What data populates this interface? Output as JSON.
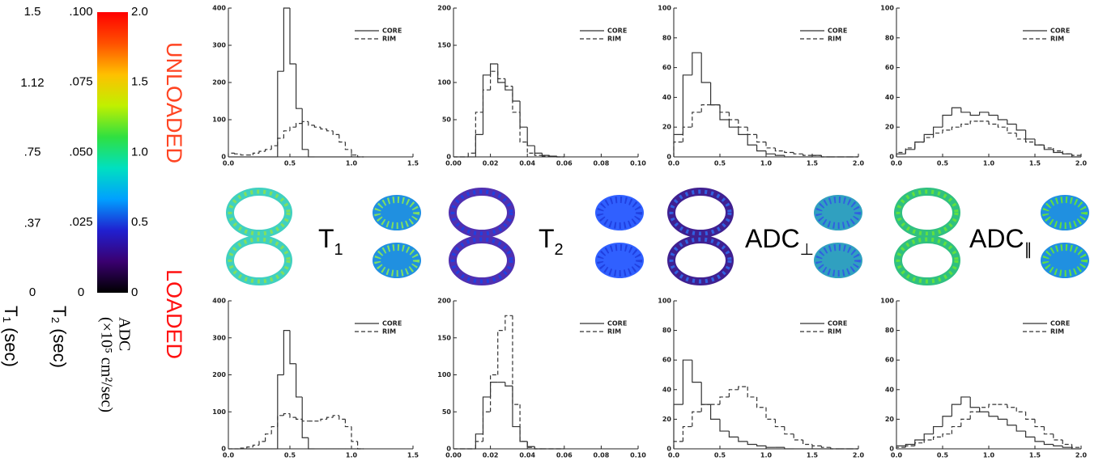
{
  "figure": {
    "unloaded": "UNLOADED",
    "loaded": "LOADED",
    "unloaded_color": "#ff4422",
    "loaded_color": "#ff1010",
    "map_labels": [
      {
        "base": "T",
        "sub": "1"
      },
      {
        "base": "T",
        "sub": "2"
      },
      {
        "base": "ADC",
        "sub": "⊥"
      },
      {
        "base": "ADC",
        "sub": "∥"
      }
    ],
    "colorbar": {
      "colors": [
        "#000000",
        "#3a0070",
        "#2020d0",
        "#00a0ff",
        "#00e0c0",
        "#30e040",
        "#c0f000",
        "#ffc000",
        "#ff5000",
        "#ff0000"
      ],
      "scales": [
        {
          "lim": [
            0,
            1.5
          ],
          "ticks": [
            1.5,
            1.12,
            {
              "value": 0.75,
              "label": ".75"
            },
            {
              "value": 0.37,
              "label": ".37"
            },
            0
          ],
          "label": [
            "T₁ (sec)"
          ]
        },
        {
          "lim": [
            0,
            0.1
          ],
          "ticks": [
            {
              "value": 0.1,
              "label": ".100"
            },
            {
              "value": 0.075,
              "label": ".075"
            },
            {
              "value": 0.05,
              "label": ".050"
            },
            {
              "value": 0.025,
              "label": ".025"
            },
            0
          ],
          "label": [
            "T₂ (sec)"
          ]
        },
        {
          "lim": [
            0,
            2
          ],
          "ticks": [
            {
              "value": 2,
              "label": "2.0"
            },
            1.5,
            {
              "value": 1,
              "label": "1.0"
            },
            0.5,
            0
          ],
          "label": [
            "ADC",
            "(×10⁵ cm²/sec)"
          ]
        }
      ]
    }
  },
  "chart_data": [
    {
      "type": "histogram",
      "bins": [
        0,
        0.05,
        0.1,
        0.15,
        0.2,
        0.25,
        0.3,
        0.35,
        0.4,
        0.45,
        0.5,
        0.55,
        0.6,
        0.65,
        0.7,
        0.75,
        0.8,
        0.85,
        0.9,
        0.95,
        1.0,
        1.05,
        1.1
      ],
      "series": [
        {
          "name": "CORE",
          "color": "#333333",
          "dash": "solid",
          "values": [
            0,
            0,
            0,
            0,
            0,
            0,
            0,
            0,
            230,
            400,
            250,
            130,
            20,
            0,
            0,
            0,
            0,
            0,
            0,
            0,
            0,
            0
          ]
        },
        {
          "name": "RIM",
          "color": "#333333",
          "dash": "dashed",
          "values": [
            10,
            8,
            5,
            5,
            10,
            15,
            20,
            30,
            50,
            70,
            80,
            90,
            95,
            85,
            80,
            75,
            70,
            60,
            40,
            20,
            5,
            0
          ]
        }
      ],
      "xlim": [
        0,
        1.5
      ],
      "xticks": [
        {
          "value": 0,
          "label": "0.0"
        },
        0.5,
        {
          "value": 1,
          "label": "1.0"
        },
        1.5
      ],
      "ylim": [
        0,
        400
      ],
      "yticks": [
        0,
        100,
        200,
        300,
        400
      ]
    },
    {
      "type": "histogram",
      "bins": [
        0,
        0.004,
        0.008,
        0.012,
        0.016,
        0.02,
        0.024,
        0.028,
        0.032,
        0.036,
        0.04,
        0.044,
        0.048,
        0.052,
        0.056,
        0.06
      ],
      "series": [
        {
          "name": "CORE",
          "color": "#333333",
          "dash": "solid",
          "values": [
            0,
            0,
            0,
            30,
            110,
            125,
            100,
            90,
            75,
            40,
            15,
            5,
            2,
            1,
            0
          ]
        },
        {
          "name": "RIM",
          "color": "#333333",
          "dash": "dashed",
          "values": [
            0,
            0,
            5,
            60,
            90,
            115,
            105,
            95,
            60,
            20,
            5,
            2,
            1,
            1,
            0
          ]
        }
      ],
      "xlim": [
        0,
        0.1
      ],
      "xticks": [
        {
          "value": 0,
          "label": "0.00"
        },
        0.02,
        0.04,
        0.06,
        0.08,
        {
          "value": 0.1,
          "label": "0.10"
        }
      ],
      "ylim": [
        0,
        200
      ],
      "yticks": [
        0,
        50,
        100,
        150,
        200
      ]
    },
    {
      "type": "histogram",
      "bins": [
        0,
        0.1,
        0.2,
        0.3,
        0.4,
        0.5,
        0.6,
        0.7,
        0.8,
        0.9,
        1.0,
        1.1,
        1.2,
        1.3,
        1.4,
        1.5,
        1.6,
        1.7,
        1.8,
        1.9,
        2.0
      ],
      "series": [
        {
          "name": "CORE",
          "color": "#333333",
          "dash": "solid",
          "values": [
            15,
            55,
            70,
            50,
            35,
            25,
            20,
            15,
            8,
            4,
            2,
            1,
            0,
            0,
            0,
            1,
            0,
            0,
            0,
            0
          ]
        },
        {
          "name": "RIM",
          "color": "#333333",
          "dash": "dashed",
          "values": [
            10,
            20,
            30,
            35,
            35,
            30,
            25,
            20,
            15,
            10,
            6,
            4,
            3,
            2,
            1,
            1,
            0,
            0,
            0,
            0
          ]
        }
      ],
      "xlim": [
        0,
        2
      ],
      "xticks": [
        {
          "value": 0,
          "label": "0.0"
        },
        0.5,
        {
          "value": 1,
          "label": "1.0"
        },
        1.5,
        {
          "value": 2,
          "label": "2.0"
        }
      ],
      "ylim": [
        0,
        100
      ],
      "yticks": [
        0,
        20,
        40,
        60,
        80,
        100
      ]
    },
    {
      "type": "histogram",
      "bins": [
        0,
        0.1,
        0.2,
        0.3,
        0.4,
        0.5,
        0.6,
        0.7,
        0.8,
        0.9,
        1.0,
        1.1,
        1.2,
        1.3,
        1.4,
        1.5,
        1.6,
        1.7,
        1.8,
        1.9,
        2.0
      ],
      "series": [
        {
          "name": "CORE",
          "color": "#333333",
          "dash": "solid",
          "values": [
            2,
            5,
            10,
            15,
            20,
            28,
            33,
            30,
            28,
            30,
            28,
            25,
            22,
            18,
            12,
            8,
            5,
            3,
            2,
            0
          ]
        },
        {
          "name": "RIM",
          "color": "#333333",
          "dash": "dashed",
          "values": [
            3,
            6,
            10,
            13,
            16,
            18,
            20,
            22,
            24,
            24,
            22,
            20,
            16,
            12,
            10,
            8,
            6,
            4,
            2,
            1
          ]
        }
      ],
      "xlim": [
        0,
        2
      ],
      "xticks": [
        {
          "value": 0,
          "label": "0.0"
        },
        0.5,
        {
          "value": 1,
          "label": "1.0"
        },
        1.5,
        {
          "value": 2,
          "label": "2.0"
        }
      ],
      "ylim": [
        0,
        100
      ],
      "yticks": [
        0,
        20,
        40,
        60,
        80,
        100
      ]
    },
    {
      "type": "histogram",
      "bins": [
        0,
        0.05,
        0.1,
        0.15,
        0.2,
        0.25,
        0.3,
        0.35,
        0.4,
        0.45,
        0.5,
        0.55,
        0.6,
        0.65,
        0.7,
        0.75,
        0.8,
        0.85,
        0.9,
        0.95,
        1.0,
        1.05,
        1.1
      ],
      "series": [
        {
          "name": "CORE",
          "color": "#333333",
          "dash": "solid",
          "values": [
            0,
            0,
            0,
            0,
            0,
            0,
            0,
            0,
            200,
            320,
            230,
            140,
            30,
            0,
            0,
            0,
            0,
            0,
            0,
            0,
            0,
            0
          ]
        },
        {
          "name": "RIM",
          "color": "#333333",
          "dash": "dashed",
          "values": [
            0,
            0,
            2,
            5,
            10,
            20,
            40,
            60,
            90,
            95,
            85,
            80,
            75,
            75,
            75,
            80,
            85,
            90,
            80,
            60,
            20,
            0
          ]
        }
      ],
      "xlim": [
        0,
        1.5
      ],
      "xticks": [
        {
          "value": 0,
          "label": "0.0"
        },
        0.5,
        {
          "value": 1,
          "label": "1.0"
        },
        1.5
      ],
      "ylim": [
        0,
        400
      ],
      "yticks": [
        0,
        100,
        200,
        300,
        400
      ]
    },
    {
      "type": "histogram",
      "bins": [
        0,
        0.004,
        0.008,
        0.012,
        0.016,
        0.02,
        0.024,
        0.028,
        0.032,
        0.036,
        0.04,
        0.044,
        0.048,
        0.052,
        0.056,
        0.06
      ],
      "series": [
        {
          "name": "CORE",
          "color": "#333333",
          "dash": "solid",
          "values": [
            0,
            0,
            0,
            20,
            70,
            90,
            90,
            85,
            30,
            10,
            3,
            0,
            0,
            0,
            0
          ]
        },
        {
          "name": "RIM",
          "color": "#333333",
          "dash": "dashed",
          "values": [
            0,
            0,
            0,
            10,
            50,
            100,
            160,
            180,
            60,
            10,
            2,
            0,
            0,
            0,
            0
          ]
        }
      ],
      "xlim": [
        0,
        0.1
      ],
      "xticks": [
        {
          "value": 0,
          "label": "0.00"
        },
        0.02,
        0.04,
        0.06,
        0.08,
        {
          "value": 0.1,
          "label": "0.10"
        }
      ],
      "ylim": [
        0,
        200
      ],
      "yticks": [
        0,
        50,
        100,
        150,
        200
      ]
    },
    {
      "type": "histogram",
      "bins": [
        0,
        0.1,
        0.2,
        0.3,
        0.4,
        0.5,
        0.6,
        0.7,
        0.8,
        0.9,
        1.0,
        1.1,
        1.2,
        1.3,
        1.4,
        1.5,
        1.6,
        1.7,
        1.8,
        1.9,
        2.0
      ],
      "series": [
        {
          "name": "CORE",
          "color": "#333333",
          "dash": "solid",
          "values": [
            30,
            60,
            45,
            30,
            20,
            12,
            8,
            5,
            3,
            2,
            1,
            1,
            0,
            0,
            0,
            0,
            0,
            0,
            0,
            0
          ]
        },
        {
          "name": "RIM",
          "color": "#333333",
          "dash": "dashed",
          "values": [
            5,
            15,
            25,
            30,
            30,
            35,
            40,
            42,
            35,
            28,
            20,
            15,
            10,
            6,
            3,
            2,
            1,
            0,
            0,
            0
          ]
        }
      ],
      "xlim": [
        0,
        2
      ],
      "xticks": [
        {
          "value": 0,
          "label": "0.0"
        },
        0.5,
        {
          "value": 1,
          "label": "1.0"
        },
        1.5,
        {
          "value": 2,
          "label": "2.0"
        }
      ],
      "ylim": [
        0,
        100
      ],
      "yticks": [
        0,
        20,
        40,
        60,
        80,
        100
      ]
    },
    {
      "type": "histogram",
      "bins": [
        0,
        0.1,
        0.2,
        0.3,
        0.4,
        0.5,
        0.6,
        0.7,
        0.8,
        0.9,
        1.0,
        1.1,
        1.2,
        1.3,
        1.4,
        1.5,
        1.6,
        1.7,
        1.8,
        1.9,
        2.0
      ],
      "series": [
        {
          "name": "CORE",
          "color": "#333333",
          "dash": "solid",
          "values": [
            2,
            3,
            6,
            10,
            15,
            22,
            30,
            35,
            28,
            25,
            22,
            20,
            16,
            12,
            8,
            5,
            3,
            2,
            1,
            0
          ]
        },
        {
          "name": "RIM",
          "color": "#333333",
          "dash": "dashed",
          "values": [
            1,
            2,
            4,
            6,
            8,
            10,
            15,
            20,
            25,
            28,
            30,
            30,
            28,
            25,
            20,
            15,
            10,
            6,
            3,
            1
          ]
        }
      ],
      "xlim": [
        0,
        2
      ],
      "xticks": [
        {
          "value": 0,
          "label": "0.0"
        },
        0.5,
        {
          "value": 1,
          "label": "1.0"
        },
        1.5,
        {
          "value": 2,
          "label": "2.0"
        }
      ],
      "ylim": [
        0,
        100
      ],
      "yticks": [
        0,
        20,
        40,
        60,
        80,
        100
      ]
    }
  ]
}
